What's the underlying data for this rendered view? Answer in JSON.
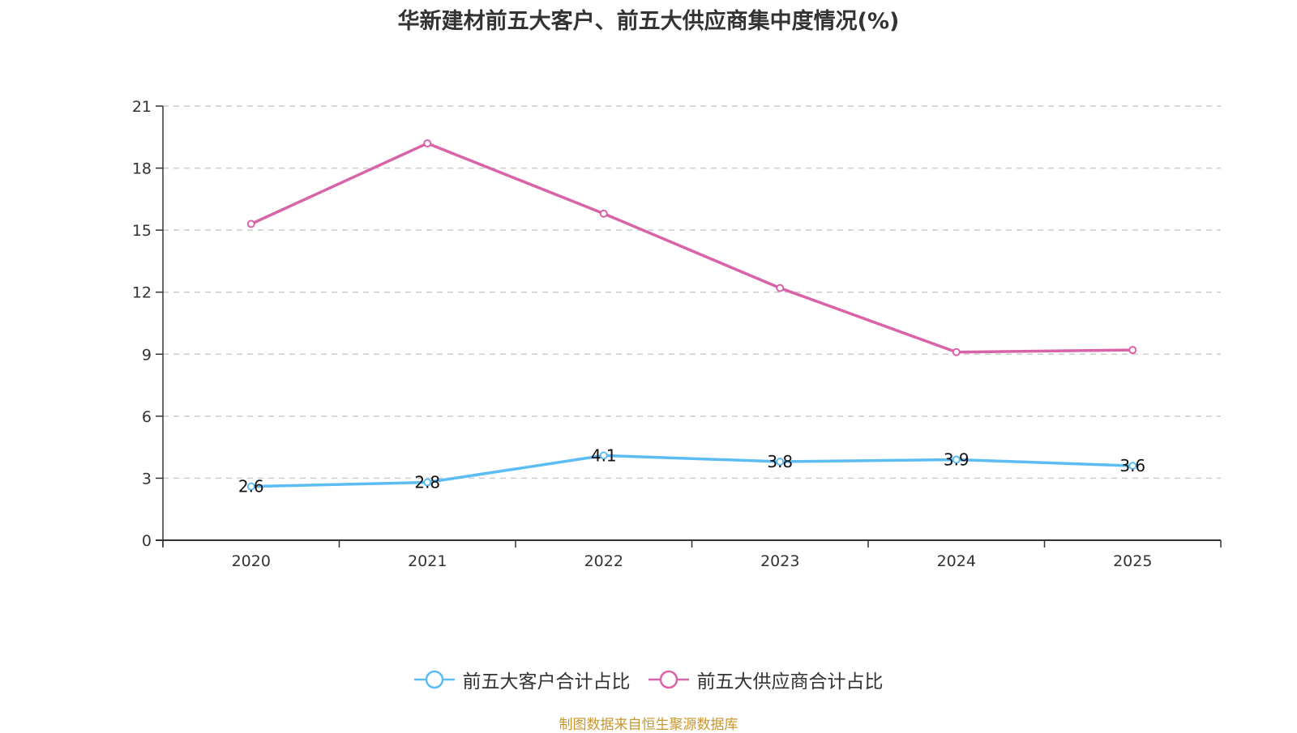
{
  "chart_data": {
    "type": "line",
    "title": "华新建材前五大客户、前五大供应商集中度情况(%)",
    "xlabel": "",
    "ylabel": "",
    "categories": [
      "2020",
      "2021",
      "2022",
      "2023",
      "2024",
      "2025"
    ],
    "ylim": [
      0,
      21
    ],
    "yticks": [
      0,
      3,
      6,
      9,
      12,
      15,
      18,
      21
    ],
    "grid": true,
    "legend_position": "bottom",
    "series": [
      {
        "name": "前五大客户合计占比",
        "color": "#5bbdf4",
        "values": [
          2.6,
          2.8,
          4.1,
          3.8,
          3.9,
          3.6
        ],
        "show_labels": true
      },
      {
        "name": "前五大供应商合计占比",
        "color": "#d963a8",
        "values": [
          15.3,
          19.2,
          15.8,
          12.2,
          9.1,
          9.2
        ],
        "show_labels": false
      }
    ]
  },
  "source_note": "制图数据来自恒生聚源数据库"
}
